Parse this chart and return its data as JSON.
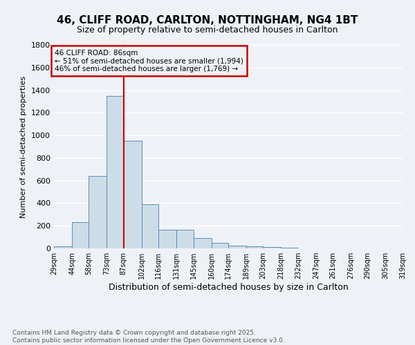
{
  "title": "46, CLIFF ROAD, CARLTON, NOTTINGHAM, NG4 1BT",
  "subtitle": "Size of property relative to semi-detached houses in Carlton",
  "xlabel": "Distribution of semi-detached houses by size in Carlton",
  "ylabel": "Number of semi-detached properties",
  "bar_heights": [
    20,
    230,
    640,
    1350,
    950,
    390,
    165,
    165,
    90,
    50,
    25,
    20,
    10,
    5,
    2,
    2,
    2,
    2,
    2,
    2
  ],
  "bin_edges": [
    29,
    44,
    58,
    73,
    87,
    102,
    116,
    131,
    145,
    160,
    174,
    189,
    203,
    218,
    232,
    247,
    261,
    276,
    290,
    305,
    319
  ],
  "tick_labels": [
    "29sqm",
    "44sqm",
    "58sqm",
    "73sqm",
    "87sqm",
    "102sqm",
    "116sqm",
    "131sqm",
    "145sqm",
    "160sqm",
    "174sqm",
    "189sqm",
    "203sqm",
    "218sqm",
    "232sqm",
    "247sqm",
    "261sqm",
    "276sqm",
    "290sqm",
    "305sqm",
    "319sqm"
  ],
  "bar_color": "#ccdde8",
  "bar_edge_color": "#5b8db8",
  "property_line_x": 87,
  "annotation_title": "46 CLIFF ROAD: 86sqm",
  "annotation_line1": "← 51% of semi-detached houses are smaller (1,994)",
  "annotation_line2": "46% of semi-detached houses are larger (1,769) →",
  "annotation_box_color": "#cc0000",
  "ylim": [
    0,
    1800
  ],
  "yticks": [
    0,
    200,
    400,
    600,
    800,
    1000,
    1200,
    1400,
    1600,
    1800
  ],
  "footer_line1": "Contains HM Land Registry data © Crown copyright and database right 2025.",
  "footer_line2": "Contains public sector information licensed under the Open Government Licence v3.0.",
  "bg_color": "#eef2f7",
  "grid_color": "#ffffff"
}
